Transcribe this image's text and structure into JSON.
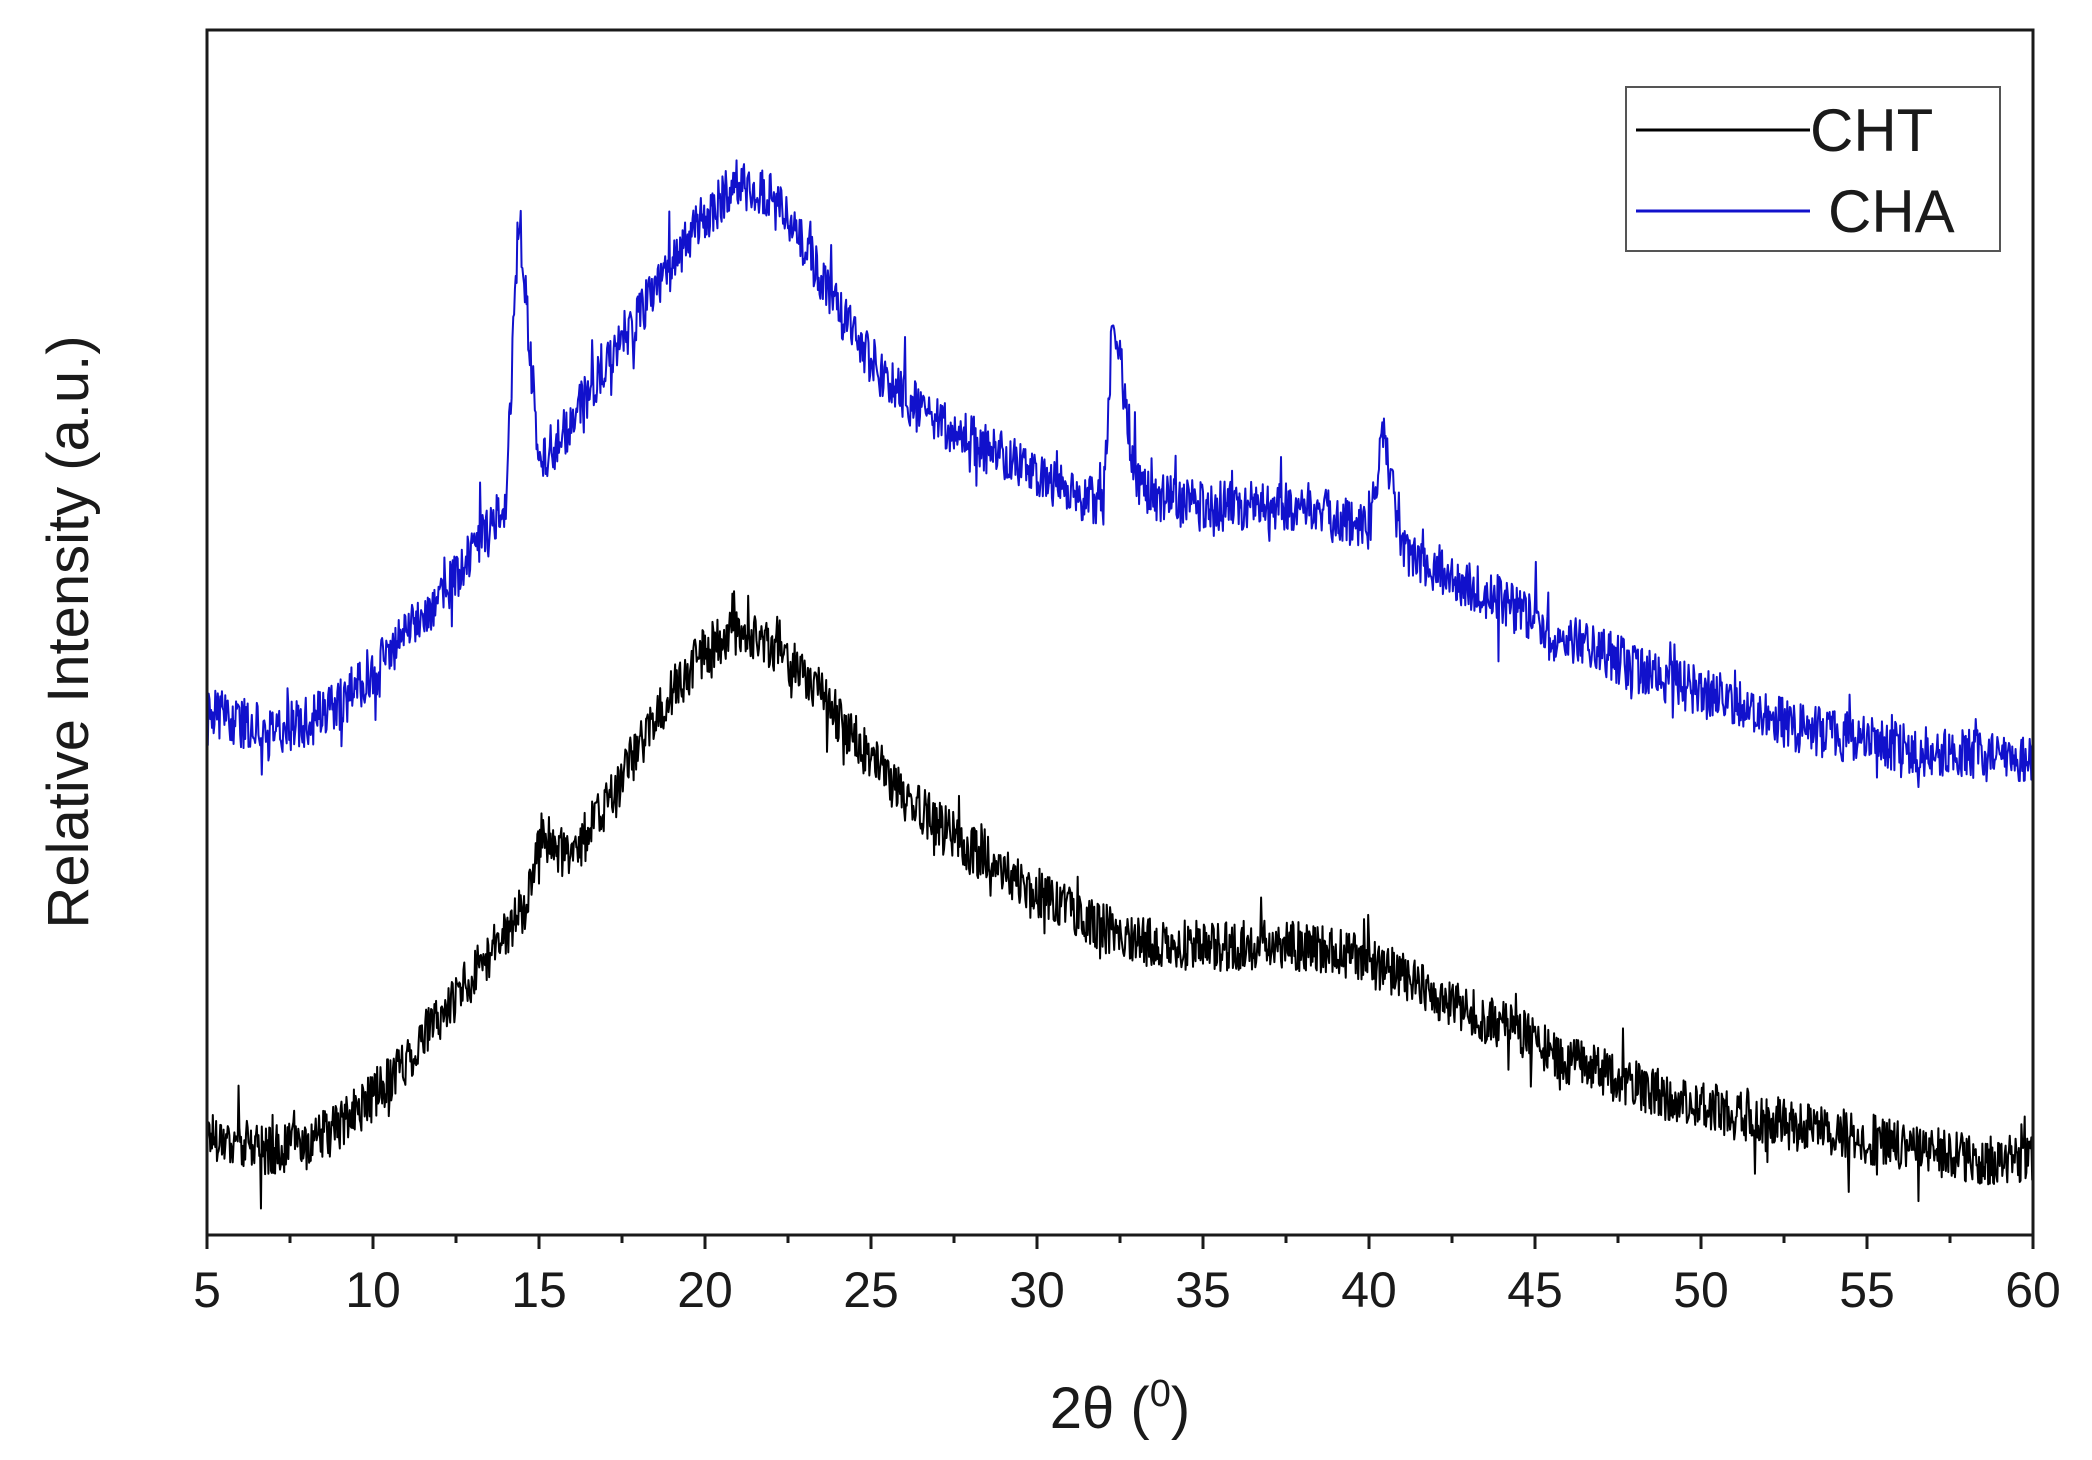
{
  "chart_data": {
    "type": "line",
    "xlabel": "2θ (⁰)",
    "xlabel_main": "2θ (",
    "xlabel_sup": "0",
    "xlabel_end": ")",
    "ylabel": "Relative Intensity (a.u.)",
    "xlim": [
      5,
      60
    ],
    "ylim": [
      0,
      100
    ],
    "x_ticks": [
      5,
      10,
      15,
      20,
      25,
      30,
      35,
      40,
      45,
      50,
      55,
      60
    ],
    "x_tick_labels": [
      "5",
      "10",
      "15",
      "20",
      "25",
      "30",
      "35",
      "40",
      "45",
      "50",
      "55",
      "60"
    ],
    "y_tick_labels_shown": false,
    "grid": false,
    "legend_position": "top-right",
    "series": [
      {
        "name": "CHT",
        "color": "#000000",
        "x": [
          5,
          6,
          7,
          8,
          9,
          10,
          11,
          12,
          13,
          14,
          14.7,
          15.1,
          15.5,
          16,
          17,
          18,
          19,
          20,
          21,
          22,
          23,
          24,
          25,
          26,
          27,
          28,
          29,
          30,
          31,
          32,
          33,
          34,
          35,
          36,
          37,
          38,
          39,
          40,
          41,
          42,
          43,
          44,
          45,
          46,
          47,
          48,
          49,
          50,
          51,
          52,
          53,
          54,
          55,
          56,
          57,
          58,
          59,
          60
        ],
        "y": [
          8.5,
          7.5,
          7.0,
          7.5,
          9.0,
          11.5,
          14.5,
          18.0,
          21.5,
          25.0,
          28.0,
          33.5,
          32.0,
          31.5,
          35.5,
          40.5,
          45.0,
          48.5,
          50.0,
          49.0,
          46.5,
          43.0,
          39.5,
          36.5,
          34.0,
          32.0,
          30.0,
          28.5,
          27.0,
          25.5,
          24.5,
          24.0,
          24.0,
          24.0,
          24.0,
          24.0,
          23.5,
          22.5,
          21.5,
          20.0,
          18.5,
          17.5,
          16.0,
          14.5,
          13.5,
          12.5,
          11.5,
          11.0,
          10.0,
          9.5,
          9.0,
          8.5,
          8.0,
          7.5,
          7.0,
          6.5,
          6.0,
          6.5
        ]
      },
      {
        "name": "CHA",
        "color": "#1111cc",
        "x": [
          5,
          6,
          7,
          8,
          9,
          10,
          11,
          12,
          13,
          14,
          14.4,
          15,
          16,
          17,
          18,
          19,
          20,
          21,
          22,
          23,
          24,
          25,
          26,
          27,
          28,
          29,
          30,
          31,
          32,
          32.3,
          33,
          34,
          35,
          36,
          37,
          38,
          39,
          40,
          40.4,
          41,
          42,
          43,
          44,
          45,
          46,
          47,
          48,
          49,
          50,
          51,
          52,
          53,
          54,
          55,
          56,
          57,
          58,
          59,
          60
        ],
        "y": [
          43.5,
          42.5,
          42.0,
          42.5,
          44.0,
          47.0,
          50.0,
          53.0,
          56.5,
          60.5,
          85.0,
          64.0,
          67.5,
          72.5,
          76.5,
          80.5,
          84.5,
          87.5,
          86.0,
          82.0,
          77.0,
          72.5,
          69.5,
          67.5,
          66.0,
          64.5,
          63.0,
          61.5,
          61.0,
          77.0,
          62.0,
          61.0,
          60.5,
          60.5,
          60.5,
          60.5,
          59.5,
          58.5,
          66.5,
          57.0,
          55.5,
          54.0,
          52.5,
          51.0,
          49.5,
          48.5,
          47.0,
          46.0,
          45.0,
          44.0,
          43.0,
          42.0,
          41.5,
          41.0,
          40.5,
          40.0,
          40.0,
          39.5,
          39.5
        ]
      }
    ]
  }
}
